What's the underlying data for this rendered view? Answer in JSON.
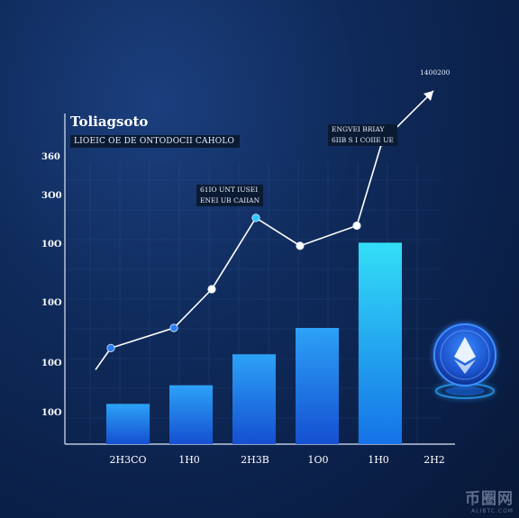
{
  "chart_data": {
    "type": "bar",
    "title": "Toliagsoto",
    "subtitle": "LIOEIC OE DE ONTODOCII CAHOLO",
    "y_tick_labels": [
      "10O",
      "10O",
      "10O",
      "10O",
      "3O0",
      "360"
    ],
    "x_tick_labels": [
      "2H3CO",
      "1H0",
      "2H3B",
      "1O0",
      "1H0",
      "2H2"
    ],
    "categories": [
      "2H3CO",
      "1H0",
      "2H3B",
      "1O0",
      "1H0"
    ],
    "values": [
      26,
      38,
      58,
      75,
      130
    ],
    "ylim": [
      0,
      150
    ],
    "grid": true,
    "bar_color_top": "#2ea8ff",
    "bar_color_bottom": "#1552d8",
    "last_bar_color_top": "#35e8ff",
    "line_series": {
      "x_index": [
        0.3,
        1.3,
        1.9,
        2.6,
        3.3,
        4.2,
        4.6
      ],
      "values": [
        62,
        75,
        100,
        146,
        128,
        141,
        195
      ],
      "arrow_end_value": 228,
      "arrow_end_x_index": 5.3
    },
    "annotations": [
      {
        "lines": [
          "61IO UNT IUSEI",
          "ENEI UB CAIIAN"
        ]
      },
      {
        "lines": [
          "ENGVEI BRIAY",
          "6IIB S I COIIE UE"
        ]
      },
      {
        "lines": [
          "1400200"
        ]
      }
    ],
    "accent_color": "#2aa6ff"
  },
  "watermark": {
    "main": "币圈网",
    "sub": "ALIBTC.COM"
  },
  "icons": {
    "coin": "ethereum-coin-icon"
  }
}
